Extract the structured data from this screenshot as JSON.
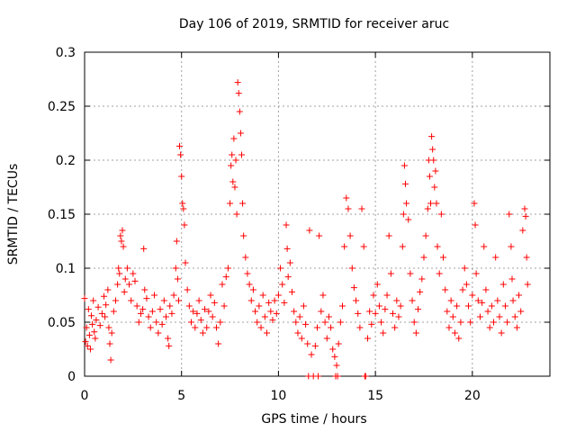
{
  "chart_data": {
    "type": "scatter",
    "title": "Day 106 of 2019, SRMTID for receiver aruc",
    "xlabel": "GPS time / hours",
    "ylabel": "SRMTID / TECUs",
    "xlim": [
      0,
      24
    ],
    "ylim": [
      0,
      0.3
    ],
    "xticks": [
      0,
      5,
      10,
      15,
      20
    ],
    "xtick_labels": [
      "0",
      "5",
      "10",
      "15",
      "20"
    ],
    "yticks": [
      0,
      0.05,
      0.1,
      0.15,
      0.2,
      0.25,
      0.3
    ],
    "ytick_labels": [
      "0",
      "0.05",
      "0.1",
      "0.15",
      "0.2",
      "0.25",
      "0.3"
    ],
    "grid": true,
    "marker": "+",
    "color": "#ff0000",
    "series": [
      {
        "name": "SRMTID",
        "points": [
          [
            0.0,
            0.072
          ],
          [
            0.05,
            0.032
          ],
          [
            0.1,
            0.045
          ],
          [
            0.15,
            0.028
          ],
          [
            0.2,
            0.062
          ],
          [
            0.25,
            0.038
          ],
          [
            0.3,
            0.025
          ],
          [
            0.35,
            0.056
          ],
          [
            0.4,
            0.048
          ],
          [
            0.45,
            0.07
          ],
          [
            0.5,
            0.041
          ],
          [
            0.55,
            0.035
          ],
          [
            0.6,
            0.052
          ],
          [
            0.7,
            0.064
          ],
          [
            0.8,
            0.047
          ],
          [
            0.9,
            0.058
          ],
          [
            1.0,
            0.074
          ],
          [
            1.05,
            0.055
          ],
          [
            1.1,
            0.066
          ],
          [
            1.2,
            0.08
          ],
          [
            1.25,
            0.045
          ],
          [
            1.3,
            0.03
          ],
          [
            1.35,
            0.015
          ],
          [
            1.4,
            0.04
          ],
          [
            1.5,
            0.06
          ],
          [
            1.6,
            0.07
          ],
          [
            1.7,
            0.085
          ],
          [
            1.75,
            0.1
          ],
          [
            1.8,
            0.095
          ],
          [
            1.85,
            0.13
          ],
          [
            1.9,
            0.125
          ],
          [
            1.95,
            0.135
          ],
          [
            2.0,
            0.12
          ],
          [
            2.05,
            0.078
          ],
          [
            2.1,
            0.09
          ],
          [
            2.2,
            0.1
          ],
          [
            2.3,
            0.085
          ],
          [
            2.4,
            0.07
          ],
          [
            2.5,
            0.095
          ],
          [
            2.6,
            0.088
          ],
          [
            2.7,
            0.065
          ],
          [
            2.8,
            0.05
          ],
          [
            2.9,
            0.058
          ],
          [
            3.0,
            0.062
          ],
          [
            3.05,
            0.118
          ],
          [
            3.1,
            0.08
          ],
          [
            3.2,
            0.072
          ],
          [
            3.3,
            0.055
          ],
          [
            3.4,
            0.045
          ],
          [
            3.5,
            0.06
          ],
          [
            3.6,
            0.075
          ],
          [
            3.7,
            0.05
          ],
          [
            3.8,
            0.04
          ],
          [
            3.9,
            0.062
          ],
          [
            4.0,
            0.048
          ],
          [
            4.1,
            0.07
          ],
          [
            4.2,
            0.055
          ],
          [
            4.3,
            0.035
          ],
          [
            4.35,
            0.028
          ],
          [
            4.4,
            0.065
          ],
          [
            4.5,
            0.058
          ],
          [
            4.6,
            0.075
          ],
          [
            4.7,
            0.1
          ],
          [
            4.75,
            0.125
          ],
          [
            4.8,
            0.09
          ],
          [
            4.85,
            0.07
          ],
          [
            4.9,
            0.213
          ],
          [
            4.95,
            0.205
          ],
          [
            5.0,
            0.185
          ],
          [
            5.05,
            0.16
          ],
          [
            5.1,
            0.155
          ],
          [
            5.15,
            0.14
          ],
          [
            5.2,
            0.105
          ],
          [
            5.3,
            0.08
          ],
          [
            5.4,
            0.065
          ],
          [
            5.5,
            0.05
          ],
          [
            5.6,
            0.06
          ],
          [
            5.7,
            0.045
          ],
          [
            5.8,
            0.058
          ],
          [
            5.9,
            0.07
          ],
          [
            6.0,
            0.052
          ],
          [
            6.1,
            0.04
          ],
          [
            6.2,
            0.062
          ],
          [
            6.3,
            0.045
          ],
          [
            6.4,
            0.06
          ],
          [
            6.5,
            0.075
          ],
          [
            6.6,
            0.055
          ],
          [
            6.7,
            0.068
          ],
          [
            6.8,
            0.045
          ],
          [
            6.9,
            0.03
          ],
          [
            7.0,
            0.05
          ],
          [
            7.1,
            0.085
          ],
          [
            7.2,
            0.065
          ],
          [
            7.3,
            0.092
          ],
          [
            7.4,
            0.1
          ],
          [
            7.5,
            0.16
          ],
          [
            7.55,
            0.195
          ],
          [
            7.6,
            0.205
          ],
          [
            7.65,
            0.18
          ],
          [
            7.7,
            0.22
          ],
          [
            7.75,
            0.175
          ],
          [
            7.8,
            0.2
          ],
          [
            7.85,
            0.15
          ],
          [
            7.9,
            0.272
          ],
          [
            7.95,
            0.262
          ],
          [
            8.0,
            0.245
          ],
          [
            8.05,
            0.225
          ],
          [
            8.1,
            0.205
          ],
          [
            8.15,
            0.16
          ],
          [
            8.2,
            0.13
          ],
          [
            8.3,
            0.11
          ],
          [
            8.4,
            0.095
          ],
          [
            8.5,
            0.085
          ],
          [
            8.6,
            0.07
          ],
          [
            8.7,
            0.08
          ],
          [
            8.8,
            0.06
          ],
          [
            8.9,
            0.05
          ],
          [
            9.0,
            0.065
          ],
          [
            9.1,
            0.045
          ],
          [
            9.2,
            0.075
          ],
          [
            9.3,
            0.055
          ],
          [
            9.4,
            0.04
          ],
          [
            9.5,
            0.068
          ],
          [
            9.6,
            0.06
          ],
          [
            9.7,
            0.052
          ],
          [
            9.8,
            0.07
          ],
          [
            9.9,
            0.058
          ],
          [
            10.0,
            0.075
          ],
          [
            10.1,
            0.1
          ],
          [
            10.2,
            0.085
          ],
          [
            10.3,
            0.068
          ],
          [
            10.4,
            0.14
          ],
          [
            10.45,
            0.118
          ],
          [
            10.5,
            0.092
          ],
          [
            10.6,
            0.105
          ],
          [
            10.7,
            0.078
          ],
          [
            10.8,
            0.06
          ],
          [
            10.9,
            0.05
          ],
          [
            11.0,
            0.04
          ],
          [
            11.1,
            0.055
          ],
          [
            11.2,
            0.035
          ],
          [
            11.3,
            0.065
          ],
          [
            11.4,
            0.048
          ],
          [
            11.5,
            0.03
          ],
          [
            11.55,
            0.0
          ],
          [
            11.6,
            0.135
          ],
          [
            11.7,
            0.02
          ],
          [
            11.8,
            0.0
          ],
          [
            11.9,
            0.028
          ],
          [
            12.0,
            0.045
          ],
          [
            12.05,
            0.0
          ],
          [
            12.1,
            0.13
          ],
          [
            12.2,
            0.06
          ],
          [
            12.3,
            0.075
          ],
          [
            12.4,
            0.05
          ],
          [
            12.5,
            0.035
          ],
          [
            12.6,
            0.055
          ],
          [
            12.7,
            0.045
          ],
          [
            12.8,
            0.025
          ],
          [
            12.9,
            0.018
          ],
          [
            12.95,
            0.0
          ],
          [
            13.0,
            0.01
          ],
          [
            13.05,
            0.0
          ],
          [
            13.1,
            0.03
          ],
          [
            13.2,
            0.05
          ],
          [
            13.3,
            0.065
          ],
          [
            13.4,
            0.12
          ],
          [
            13.5,
            0.165
          ],
          [
            13.6,
            0.155
          ],
          [
            13.7,
            0.13
          ],
          [
            13.8,
            0.1
          ],
          [
            13.9,
            0.082
          ],
          [
            14.0,
            0.07
          ],
          [
            14.1,
            0.058
          ],
          [
            14.2,
            0.045
          ],
          [
            14.3,
            0.155
          ],
          [
            14.4,
            0.12
          ],
          [
            14.45,
            0.0
          ],
          [
            14.5,
            0.0
          ],
          [
            14.6,
            0.035
          ],
          [
            14.7,
            0.06
          ],
          [
            14.8,
            0.048
          ],
          [
            14.9,
            0.075
          ],
          [
            15.0,
            0.058
          ],
          [
            15.1,
            0.085
          ],
          [
            15.2,
            0.065
          ],
          [
            15.3,
            0.05
          ],
          [
            15.4,
            0.04
          ],
          [
            15.5,
            0.062
          ],
          [
            15.6,
            0.075
          ],
          [
            15.7,
            0.13
          ],
          [
            15.8,
            0.095
          ],
          [
            15.9,
            0.058
          ],
          [
            16.0,
            0.045
          ],
          [
            16.1,
            0.07
          ],
          [
            16.2,
            0.055
          ],
          [
            16.3,
            0.065
          ],
          [
            16.4,
            0.12
          ],
          [
            16.45,
            0.15
          ],
          [
            16.5,
            0.195
          ],
          [
            16.55,
            0.178
          ],
          [
            16.6,
            0.16
          ],
          [
            16.7,
            0.145
          ],
          [
            16.8,
            0.095
          ],
          [
            16.9,
            0.07
          ],
          [
            17.0,
            0.05
          ],
          [
            17.1,
            0.04
          ],
          [
            17.2,
            0.062
          ],
          [
            17.3,
            0.078
          ],
          [
            17.4,
            0.09
          ],
          [
            17.5,
            0.11
          ],
          [
            17.6,
            0.13
          ],
          [
            17.7,
            0.155
          ],
          [
            17.75,
            0.2
          ],
          [
            17.8,
            0.185
          ],
          [
            17.85,
            0.16
          ],
          [
            17.9,
            0.222
          ],
          [
            17.95,
            0.21
          ],
          [
            18.0,
            0.2
          ],
          [
            18.05,
            0.175
          ],
          [
            18.1,
            0.19
          ],
          [
            18.15,
            0.16
          ],
          [
            18.2,
            0.12
          ],
          [
            18.3,
            0.095
          ],
          [
            18.4,
            0.15
          ],
          [
            18.5,
            0.11
          ],
          [
            18.6,
            0.08
          ],
          [
            18.7,
            0.06
          ],
          [
            18.8,
            0.045
          ],
          [
            18.9,
            0.07
          ],
          [
            19.0,
            0.055
          ],
          [
            19.1,
            0.04
          ],
          [
            19.2,
            0.065
          ],
          [
            19.3,
            0.035
          ],
          [
            19.4,
            0.05
          ],
          [
            19.5,
            0.08
          ],
          [
            19.6,
            0.1
          ],
          [
            19.7,
            0.085
          ],
          [
            19.8,
            0.065
          ],
          [
            19.9,
            0.05
          ],
          [
            20.0,
            0.075
          ],
          [
            20.1,
            0.16
          ],
          [
            20.15,
            0.14
          ],
          [
            20.2,
            0.095
          ],
          [
            20.3,
            0.07
          ],
          [
            20.4,
            0.055
          ],
          [
            20.5,
            0.068
          ],
          [
            20.6,
            0.12
          ],
          [
            20.7,
            0.08
          ],
          [
            20.8,
            0.06
          ],
          [
            20.9,
            0.045
          ],
          [
            21.0,
            0.065
          ],
          [
            21.1,
            0.05
          ],
          [
            21.2,
            0.11
          ],
          [
            21.3,
            0.07
          ],
          [
            21.4,
            0.055
          ],
          [
            21.5,
            0.04
          ],
          [
            21.6,
            0.085
          ],
          [
            21.7,
            0.065
          ],
          [
            21.8,
            0.05
          ],
          [
            21.9,
            0.15
          ],
          [
            22.0,
            0.12
          ],
          [
            22.05,
            0.09
          ],
          [
            22.1,
            0.07
          ],
          [
            22.2,
            0.055
          ],
          [
            22.3,
            0.045
          ],
          [
            22.4,
            0.075
          ],
          [
            22.5,
            0.06
          ],
          [
            22.6,
            0.135
          ],
          [
            22.7,
            0.155
          ],
          [
            22.75,
            0.148
          ],
          [
            22.8,
            0.11
          ],
          [
            22.85,
            0.085
          ]
        ]
      }
    ]
  }
}
